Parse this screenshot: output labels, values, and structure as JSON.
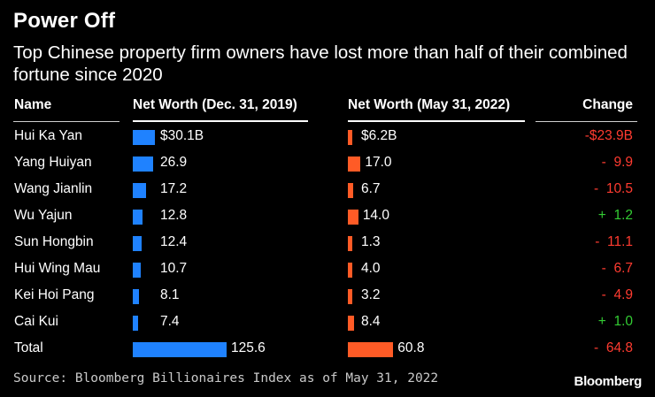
{
  "title": "Power Off",
  "subtitle": "Top Chinese property firm owners have lost more than half of their combined fortune since 2020",
  "headers": {
    "name": "Name",
    "net_2019": "Net Worth (Dec. 31, 2019)",
    "net_2022": "Net Worth (May 31, 2022)",
    "change": "Change"
  },
  "colors": {
    "blue": "#1f82ff",
    "orange": "#ff5b26",
    "negative": "#ff3b30",
    "positive": "#33cc33"
  },
  "source": "Source: Bloomberg Billionaires Index as of May 31, 2022",
  "brand": "Bloomberg",
  "chart_data": {
    "type": "bar",
    "title": "Power Off",
    "subtitle": "Top Chinese property firm owners have lost more than half of their combined fortune since 2020",
    "categories": [
      "Hui Ka Yan",
      "Yang Huiyan",
      "Wang Jianlin",
      "Wu Yajun",
      "Sun Hongbin",
      "Hui Wing Mau",
      "Kei Hoi Pang",
      "Cai Kui",
      "Total"
    ],
    "series": [
      {
        "name": "Net Worth (Dec. 31, 2019)",
        "values": [
          30.1,
          26.9,
          17.2,
          12.8,
          12.4,
          10.7,
          8.1,
          7.4,
          125.6
        ],
        "labels": [
          "$30.1B",
          "26.9",
          "17.2",
          "12.8",
          "12.4",
          "10.7",
          "8.1",
          "7.4",
          "125.6"
        ]
      },
      {
        "name": "Net Worth (May 31, 2022)",
        "values": [
          6.2,
          17.0,
          6.7,
          14.0,
          1.3,
          4.0,
          3.2,
          8.4,
          60.8
        ],
        "labels": [
          "$6.2B",
          "17.0",
          "6.7",
          "14.0",
          "1.3",
          "4.0",
          "3.2",
          "8.4",
          "60.8"
        ]
      },
      {
        "name": "Change",
        "values": [
          -23.9,
          -9.9,
          -10.5,
          1.2,
          -11.1,
          -6.7,
          -4.9,
          1.0,
          -64.8
        ],
        "labels": [
          "-$23.9B",
          "-  9.9",
          "-  10.5",
          "+  1.2",
          "-  11.1",
          "-  6.7",
          "-  4.9",
          "+  1.0",
          "-  64.8"
        ]
      }
    ],
    "xlabel": "",
    "ylabel": ""
  }
}
